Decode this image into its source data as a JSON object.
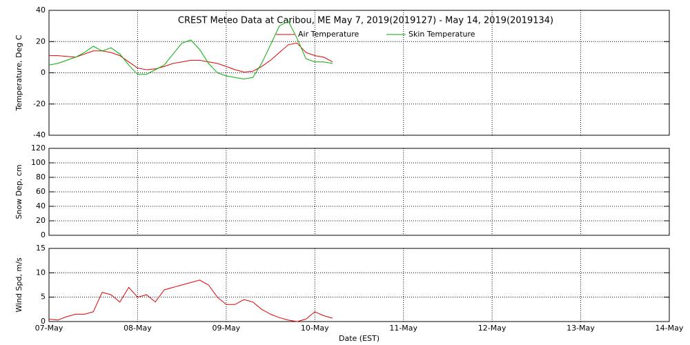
{
  "chart_data": [
    {
      "type": "line",
      "title": "CREST Meteo Data at Caribou, ME   May  7, 2019(2019127) - May 14, 2019(2019134)",
      "y_label": "Temperature, Deg C",
      "x": [
        0,
        0.1,
        0.2,
        0.3,
        0.4,
        0.5,
        0.6,
        0.7,
        0.8,
        0.9,
        1.0,
        1.1,
        1.2,
        1.3,
        1.4,
        1.5,
        1.6,
        1.7,
        1.8,
        1.9,
        2.0,
        2.1,
        2.2,
        2.3,
        2.4,
        2.5,
        2.6,
        2.7,
        2.8,
        2.9,
        3.0,
        3.1,
        3.2
      ],
      "series": [
        {
          "name": "Air Temperature",
          "color": "#e00000",
          "values": [
            11,
            11,
            10.5,
            10,
            12,
            14,
            14,
            13,
            11,
            7,
            3,
            2,
            2.5,
            4,
            6,
            7,
            8,
            8,
            7,
            6,
            4,
            2,
            0.5,
            1,
            4,
            8,
            13,
            18,
            19,
            13,
            11,
            10,
            7
          ]
        },
        {
          "name": "Skin Temperature",
          "color": "#00b000",
          "values": [
            5,
            6,
            8,
            10,
            13,
            17,
            14,
            16,
            12,
            5,
            -1,
            -1,
            2,
            5,
            12,
            19,
            21,
            15,
            6,
            0,
            -2,
            -3,
            -4,
            -3,
            6,
            18,
            30,
            33,
            22,
            9,
            7,
            7,
            6
          ]
        }
      ],
      "xlim": [
        0,
        7
      ],
      "ylim": [
        -40,
        40
      ],
      "yticks": [
        -40,
        -20,
        0,
        20,
        40
      ],
      "grid": true
    },
    {
      "type": "line",
      "y_label": "Snow Dep, cm",
      "series": [],
      "xlim": [
        0,
        7
      ],
      "ylim": [
        0,
        120
      ],
      "yticks": [
        0,
        20,
        40,
        60,
        80,
        100,
        120
      ],
      "grid": true
    },
    {
      "type": "line",
      "y_label": "Wind Spd, m/s",
      "x_label": "Date (EST)",
      "x": [
        0,
        0.1,
        0.2,
        0.3,
        0.4,
        0.5,
        0.6,
        0.7,
        0.8,
        0.9,
        1.0,
        1.1,
        1.2,
        1.3,
        1.4,
        1.5,
        1.6,
        1.7,
        1.8,
        1.9,
        2.0,
        2.1,
        2.2,
        2.3,
        2.4,
        2.5,
        2.6,
        2.7,
        2.8,
        2.9,
        3.0,
        3.1,
        3.2
      ],
      "series": [
        {
          "color": "#e00000",
          "values": [
            0.5,
            0.3,
            1,
            1.5,
            1.5,
            2,
            6,
            5.5,
            4,
            7,
            5,
            5.5,
            4,
            6.5,
            7,
            7.5,
            8,
            8.5,
            7.5,
            5,
            3.5,
            3.5,
            4.5,
            4,
            2.5,
            1.5,
            0.8,
            0.3,
            0,
            0.5,
            2,
            1.2,
            0.7
          ]
        }
      ],
      "xlim": [
        0,
        7
      ],
      "xticks": [
        {
          "value": 0,
          "label": "07-May"
        },
        {
          "value": 1,
          "label": "08-May"
        },
        {
          "value": 2,
          "label": "09-May"
        },
        {
          "value": 3,
          "label": "10-May"
        },
        {
          "value": 4,
          "label": "11-May"
        },
        {
          "value": 5,
          "label": "12-May"
        },
        {
          "value": 6,
          "label": "13-May"
        },
        {
          "value": 7,
          "label": "14-May"
        }
      ],
      "ylim": [
        0,
        15
      ],
      "yticks": [
        0,
        5,
        10,
        15
      ],
      "grid": true
    }
  ]
}
